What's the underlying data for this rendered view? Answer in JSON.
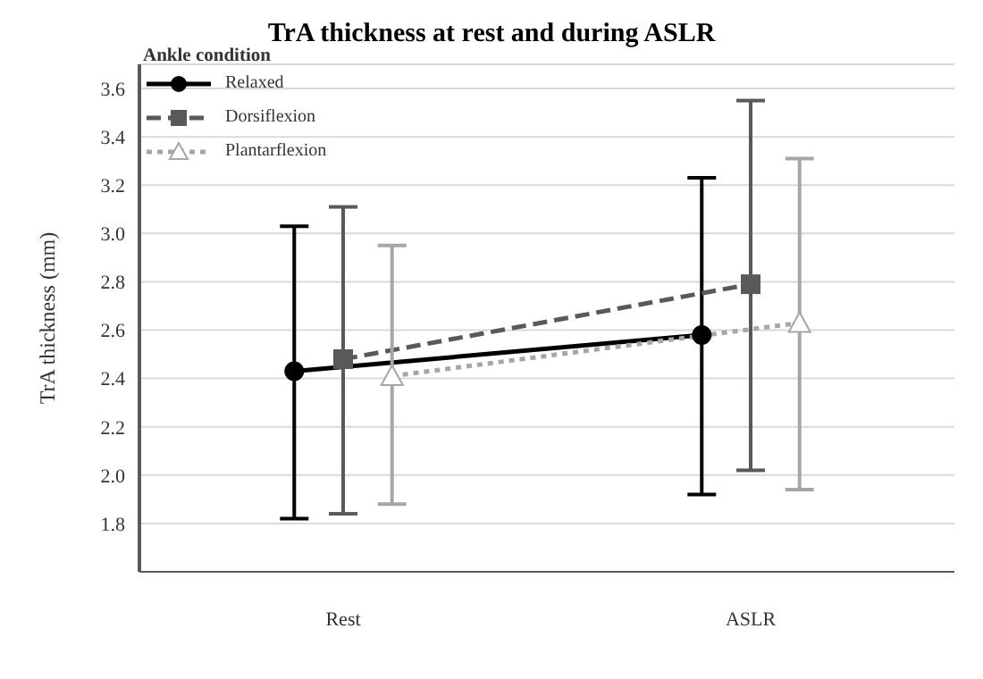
{
  "chart_data": {
    "type": "line",
    "title": "TrA thickness at rest and during ASLR",
    "ylabel": "TrA thickness (mm)",
    "legend_title": "Ankle condition",
    "categories": [
      "Rest",
      "ASLR"
    ],
    "series": [
      {
        "name": "Relaxed",
        "color": "#000000",
        "marker": "circle",
        "line_style": "solid",
        "values": [
          2.43,
          2.58
        ],
        "errors": [
          [
            1.82,
            3.03
          ],
          [
            1.92,
            3.23
          ]
        ]
      },
      {
        "name": "Dorsiflexion",
        "color": "#595959",
        "marker": "square",
        "line_style": "dashed",
        "values": [
          2.48,
          2.79
        ],
        "errors": [
          [
            1.84,
            3.11
          ],
          [
            2.02,
            3.55
          ]
        ]
      },
      {
        "name": "Plantarflexion",
        "color": "#a6a6a6",
        "marker": "triangle",
        "line_style": "dotted",
        "values": [
          2.41,
          2.63
        ],
        "errors": [
          [
            1.88,
            2.95
          ],
          [
            1.94,
            3.31
          ]
        ]
      }
    ],
    "ylim": [
      1.6,
      3.7
    ],
    "yticks": [
      1.8,
      {
        "value": 2.0,
        "label": "2.0"
      },
      2.2,
      2.4,
      2.6,
      2.8,
      {
        "value": 3.0,
        "label": "3.0"
      },
      3.2,
      3.4,
      3.6
    ],
    "grid": "y",
    "legend": "top left"
  }
}
